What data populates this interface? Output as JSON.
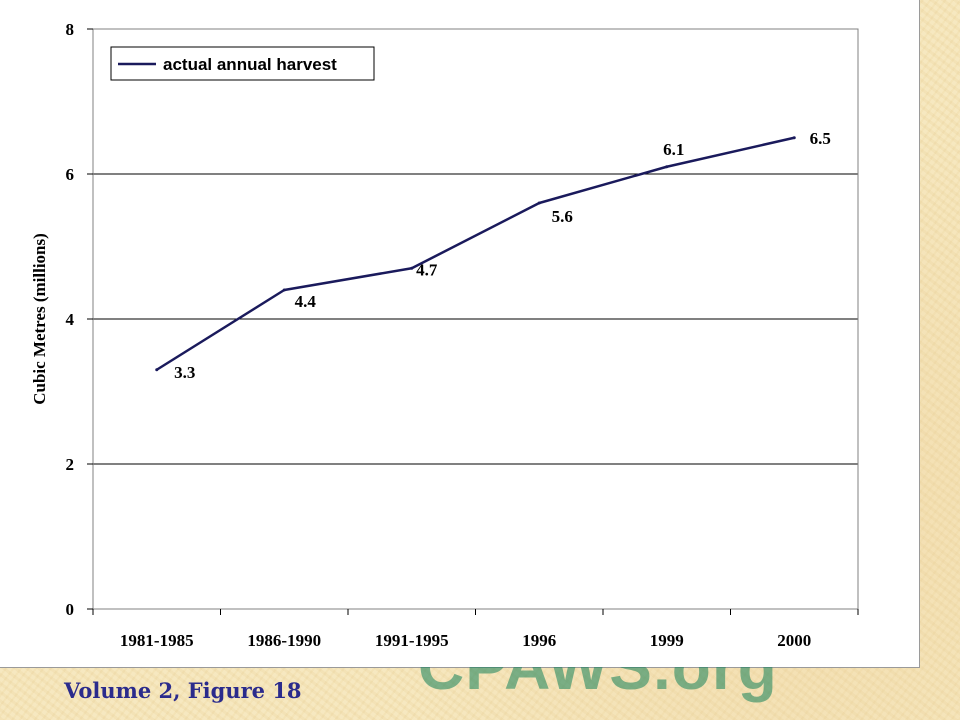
{
  "caption": "Volume 2, Figure 18",
  "watermark": "CPAWS.org",
  "chart_data": {
    "type": "line",
    "categories": [
      "1981-1985",
      "1986-1990",
      "1991-1995",
      "1996",
      "1999",
      "2000"
    ],
    "series": [
      {
        "name": "actual annual harvest",
        "values": [
          3.3,
          4.4,
          4.7,
          5.6,
          6.1,
          6.5
        ],
        "color": "#1a1a5c"
      }
    ],
    "data_labels": [
      "3.3",
      "4.4",
      "4.7",
      "5.6",
      "6.1",
      "6.5"
    ],
    "ylabel": "Cubic Metres (millions)",
    "xlabel": "",
    "title": "",
    "ylim": [
      0,
      8
    ],
    "yticks": [
      0,
      2,
      4,
      6,
      8
    ],
    "grid": true,
    "legend_position": "top-left"
  }
}
